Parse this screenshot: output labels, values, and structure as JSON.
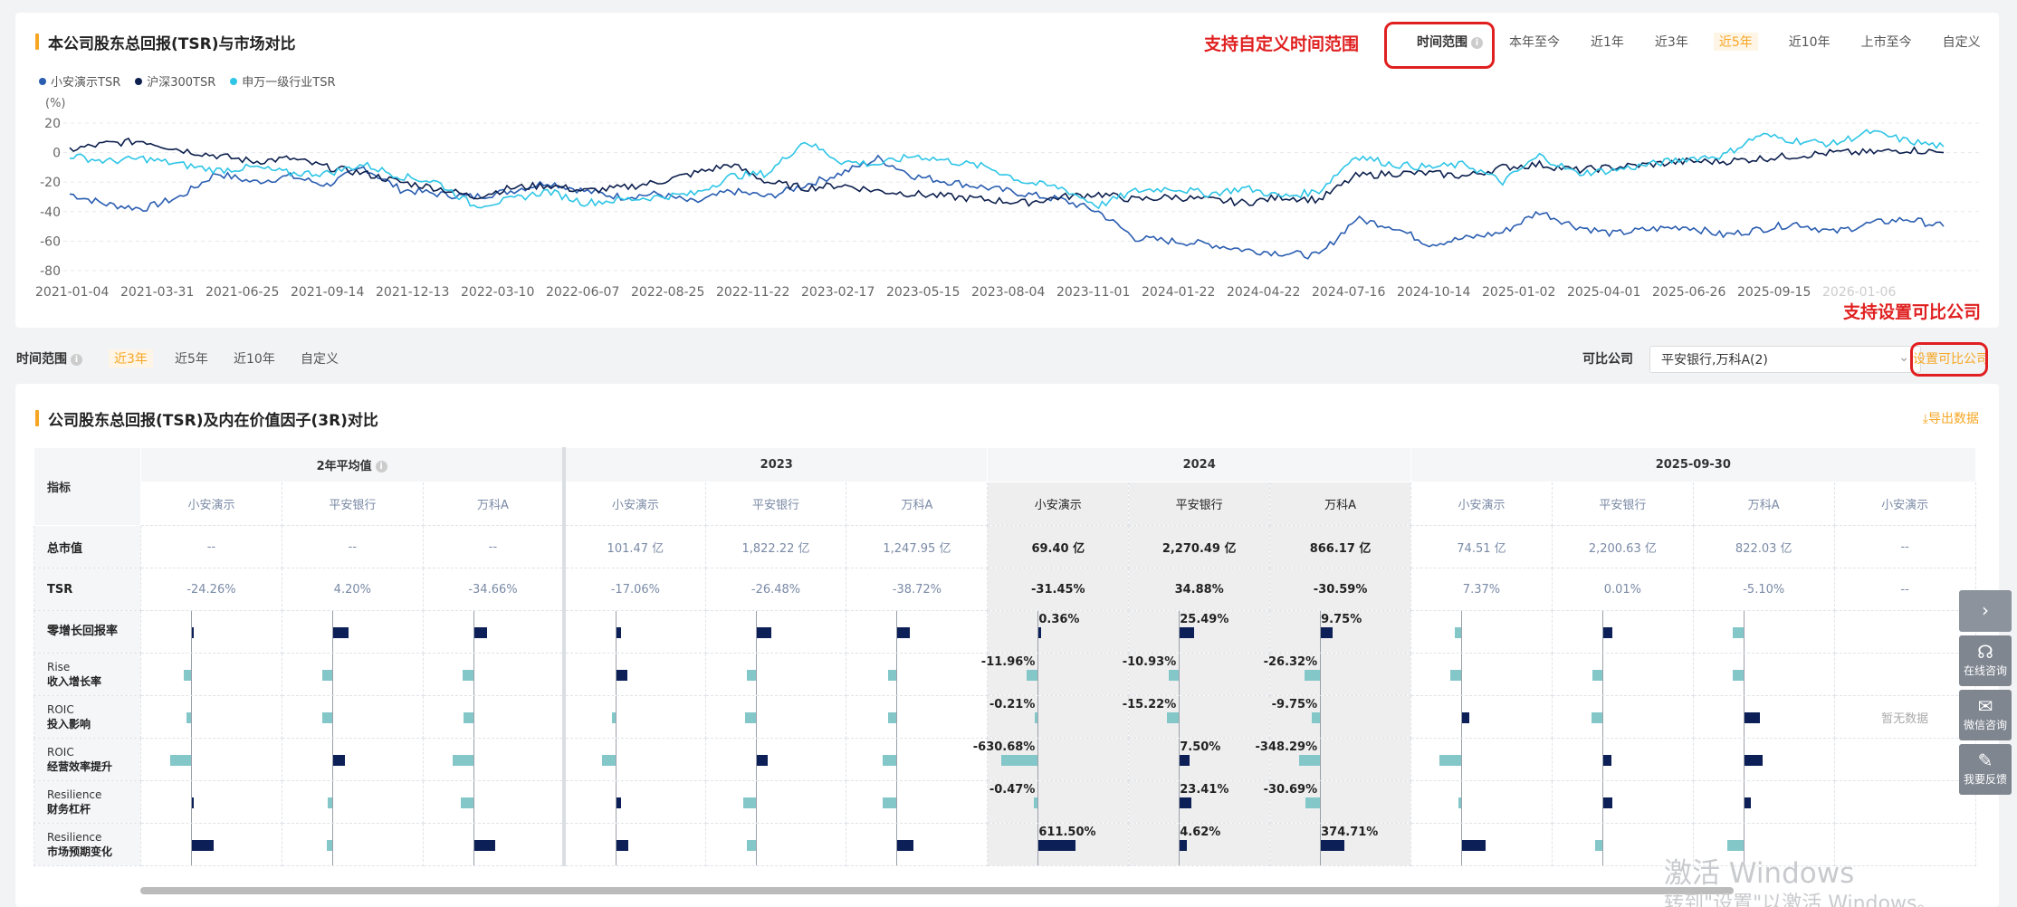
{
  "chart_section": {
    "title": "本公司股东总回报(TSR)与市场对比",
    "annotation": "支持自定义时间范围",
    "time_range_label": "时间范围",
    "tabs": [
      "本年至今",
      "近1年",
      "近3年",
      "近5年",
      "近10年",
      "上市至今",
      "自定义"
    ],
    "active_tab": "近5年",
    "legend": [
      {
        "name": "小安演示TSR",
        "color": "#2a5db0"
      },
      {
        "name": "沪深300TSR",
        "color": "#0c1f4d"
      },
      {
        "name": "申万一级行业TSR",
        "color": "#2ec5e6"
      }
    ]
  },
  "chart_data": {
    "type": "line",
    "ylabel": "(%)",
    "ylim": [
      -80,
      20
    ],
    "yticks": [
      "20",
      "0",
      "-20",
      "-40",
      "-60",
      "-80"
    ],
    "xticks": [
      "2021-01-04",
      "2021-03-31",
      "2021-06-25",
      "2021-09-14",
      "2021-12-13",
      "2022-03-10",
      "2022-06-07",
      "2022-08-25",
      "2022-11-22",
      "2023-02-17",
      "2023-05-15",
      "2023-08-04",
      "2023-11-01",
      "2024-01-22",
      "2024-04-22",
      "2024-07-16",
      "2024-10-14",
      "2025-01-02",
      "2025-04-01",
      "2025-06-26",
      "2025-09-15",
      "2026-01-06"
    ],
    "series": [
      {
        "name": "小安演示TSR",
        "color": "#2a5db0",
        "values": [
          -28,
          -35,
          -38,
          -30,
          -14,
          -20,
          -16,
          -22,
          -10,
          -25,
          -28,
          -30,
          -26,
          -20,
          -26,
          -30,
          -28,
          -34,
          -26,
          -30,
          -22,
          -14,
          -4,
          -16,
          -20,
          -24,
          -28,
          -32,
          -40,
          -58,
          -60,
          -62,
          -66,
          -68,
          -70,
          -45,
          -50,
          -62,
          -58,
          -54,
          -40,
          -50,
          -55,
          -52,
          -50,
          -56,
          -52,
          -48,
          -54,
          -48,
          -45,
          -50
        ]
      },
      {
        "name": "沪深300TSR",
        "color": "#0c1f4d",
        "values": [
          2,
          6,
          8,
          2,
          -2,
          -6,
          -4,
          -10,
          -14,
          -20,
          -24,
          -30,
          -24,
          -22,
          -26,
          -24,
          -20,
          -14,
          -8,
          -20,
          -24,
          -22,
          -26,
          -28,
          -30,
          -32,
          -34,
          -30,
          -28,
          -32,
          -30,
          -32,
          -34,
          -30,
          -32,
          -16,
          -14,
          -14,
          -16,
          -10,
          -8,
          -12,
          -10,
          -8,
          -6,
          -6,
          -4,
          -2,
          0,
          0,
          2,
          0
        ]
      },
      {
        "name": "申万一级行业TSR",
        "color": "#2ec5e6",
        "values": [
          -2,
          -6,
          -4,
          -8,
          -12,
          -10,
          -14,
          -14,
          -8,
          -16,
          -20,
          -36,
          -32,
          -26,
          -34,
          -32,
          -30,
          -28,
          -16,
          -14,
          8,
          -6,
          -8,
          -2,
          -6,
          -10,
          -20,
          -24,
          -36,
          -26,
          -24,
          -28,
          -24,
          -30,
          -26,
          -2,
          -8,
          -10,
          -8,
          -20,
          -2,
          -14,
          -12,
          -8,
          -4,
          -2,
          12,
          8,
          6,
          14,
          8,
          4
        ]
      }
    ]
  },
  "annotation_compare": "支持设置可比公司",
  "filter": {
    "label": "时间范围",
    "options": [
      "近3年",
      "近5年",
      "近10年",
      "自定义"
    ],
    "active": "近3年",
    "compare_label": "可比公司",
    "compare_value": "平安银行,万科A(2)",
    "set_compare": "设置可比公司"
  },
  "table_section": {
    "title": "公司股东总回报(TSR)及内在价值因子(3R)对比",
    "export": "导出数据",
    "indicator_header": "指标",
    "groups": [
      "2年平均值",
      "2023",
      "2024",
      "2025-09-30"
    ],
    "companies": [
      "小安演示",
      "平安银行",
      "万科A",
      "小安演示",
      "平安银行",
      "万科A",
      "小安演示",
      "平安银行",
      "万科A",
      "小安演示",
      "平安银行",
      "万科A",
      "小安演示"
    ],
    "market_cap_label": "总市值",
    "market_cap": [
      "--",
      "--",
      "--",
      "101.47 亿",
      "1,822.22 亿",
      "1,247.95 亿",
      "69.40 亿",
      "2,270.49 亿",
      "866.17 亿",
      "74.51 亿",
      "2,200.63 亿",
      "822.03 亿",
      "--"
    ],
    "tsr_label": "TSR",
    "tsr": [
      "-24.26%",
      "4.20%",
      "-34.66%",
      "-17.06%",
      "-26.48%",
      "-38.72%",
      "-31.45%",
      "34.88%",
      "-30.59%",
      "7.37%",
      "0.01%",
      "-5.10%",
      "--"
    ],
    "factor_rows": [
      {
        "l1": "零增长回报率",
        "l2": ""
      },
      {
        "l1": "Rise",
        "l2": "收入增长率"
      },
      {
        "l1": "ROIC",
        "l2": "投入影响"
      },
      {
        "l1": "ROIC",
        "l2": "经营效率提升"
      },
      {
        "l1": "Resilience",
        "l2": "财务杠杆"
      },
      {
        "l1": "Resilience",
        "l2": "市场预期变化"
      }
    ],
    "bars": [
      [
        4,
        30,
        24,
        8,
        28,
        24,
        5,
        28,
        22,
        -12,
        18,
        -20
      ],
      [
        -14,
        -18,
        -20,
        20,
        -16,
        -16,
        -22,
        -20,
        -30,
        -20,
        -18,
        -20
      ],
      [
        -8,
        -18,
        -18,
        -8,
        -20,
        -16,
        -6,
        -22,
        -16,
        14,
        -20,
        30
      ],
      [
        -40,
        22,
        -40,
        -26,
        22,
        -26,
        -70,
        18,
        -40,
        -42,
        16,
        34
      ],
      [
        4,
        -8,
        -24,
        8,
        -24,
        -26,
        -8,
        22,
        -28,
        -6,
        18,
        12
      ],
      [
        42,
        -10,
        40,
        22,
        -16,
        30,
        70,
        14,
        44,
        44,
        -14,
        -30
      ]
    ],
    "bar_labels": [
      [
        "",
        "",
        "",
        "",
        "",
        "",
        "0.36%",
        "25.49%",
        "9.75%",
        "",
        "",
        ""
      ],
      [
        "",
        "",
        "",
        "",
        "",
        "",
        "-11.96%",
        "-10.93%",
        "-26.32%",
        "",
        "",
        ""
      ],
      [
        "",
        "",
        "",
        "",
        "",
        "",
        "-0.21%",
        "-15.22%",
        "-9.75%",
        "",
        "",
        ""
      ],
      [
        "",
        "",
        "",
        "",
        "",
        "",
        "-630.68%",
        "7.50%",
        "-348.29%",
        "",
        "",
        ""
      ],
      [
        "",
        "",
        "",
        "",
        "",
        "",
        "-0.47%",
        "23.41%",
        "-30.69%",
        "",
        "",
        ""
      ],
      [
        "",
        "",
        "",
        "",
        "",
        "",
        "611.50%",
        "4.62%",
        "374.71%",
        "",
        "",
        ""
      ]
    ],
    "no_data": "暂无数据"
  },
  "side_tools": [
    {
      "icon": "chevron-right-icon",
      "glyph": "›",
      "label": ""
    },
    {
      "icon": "headset-icon",
      "glyph": "☊",
      "label": "在线咨询"
    },
    {
      "icon": "chat-icon",
      "glyph": "✉",
      "label": "微信咨询"
    },
    {
      "icon": "feedback-icon",
      "glyph": "✎",
      "label": "我要反馈"
    }
  ],
  "watermark": {
    "line1": "激活 Windows",
    "line2": "转到\"设置\"以激活 Windows。"
  }
}
